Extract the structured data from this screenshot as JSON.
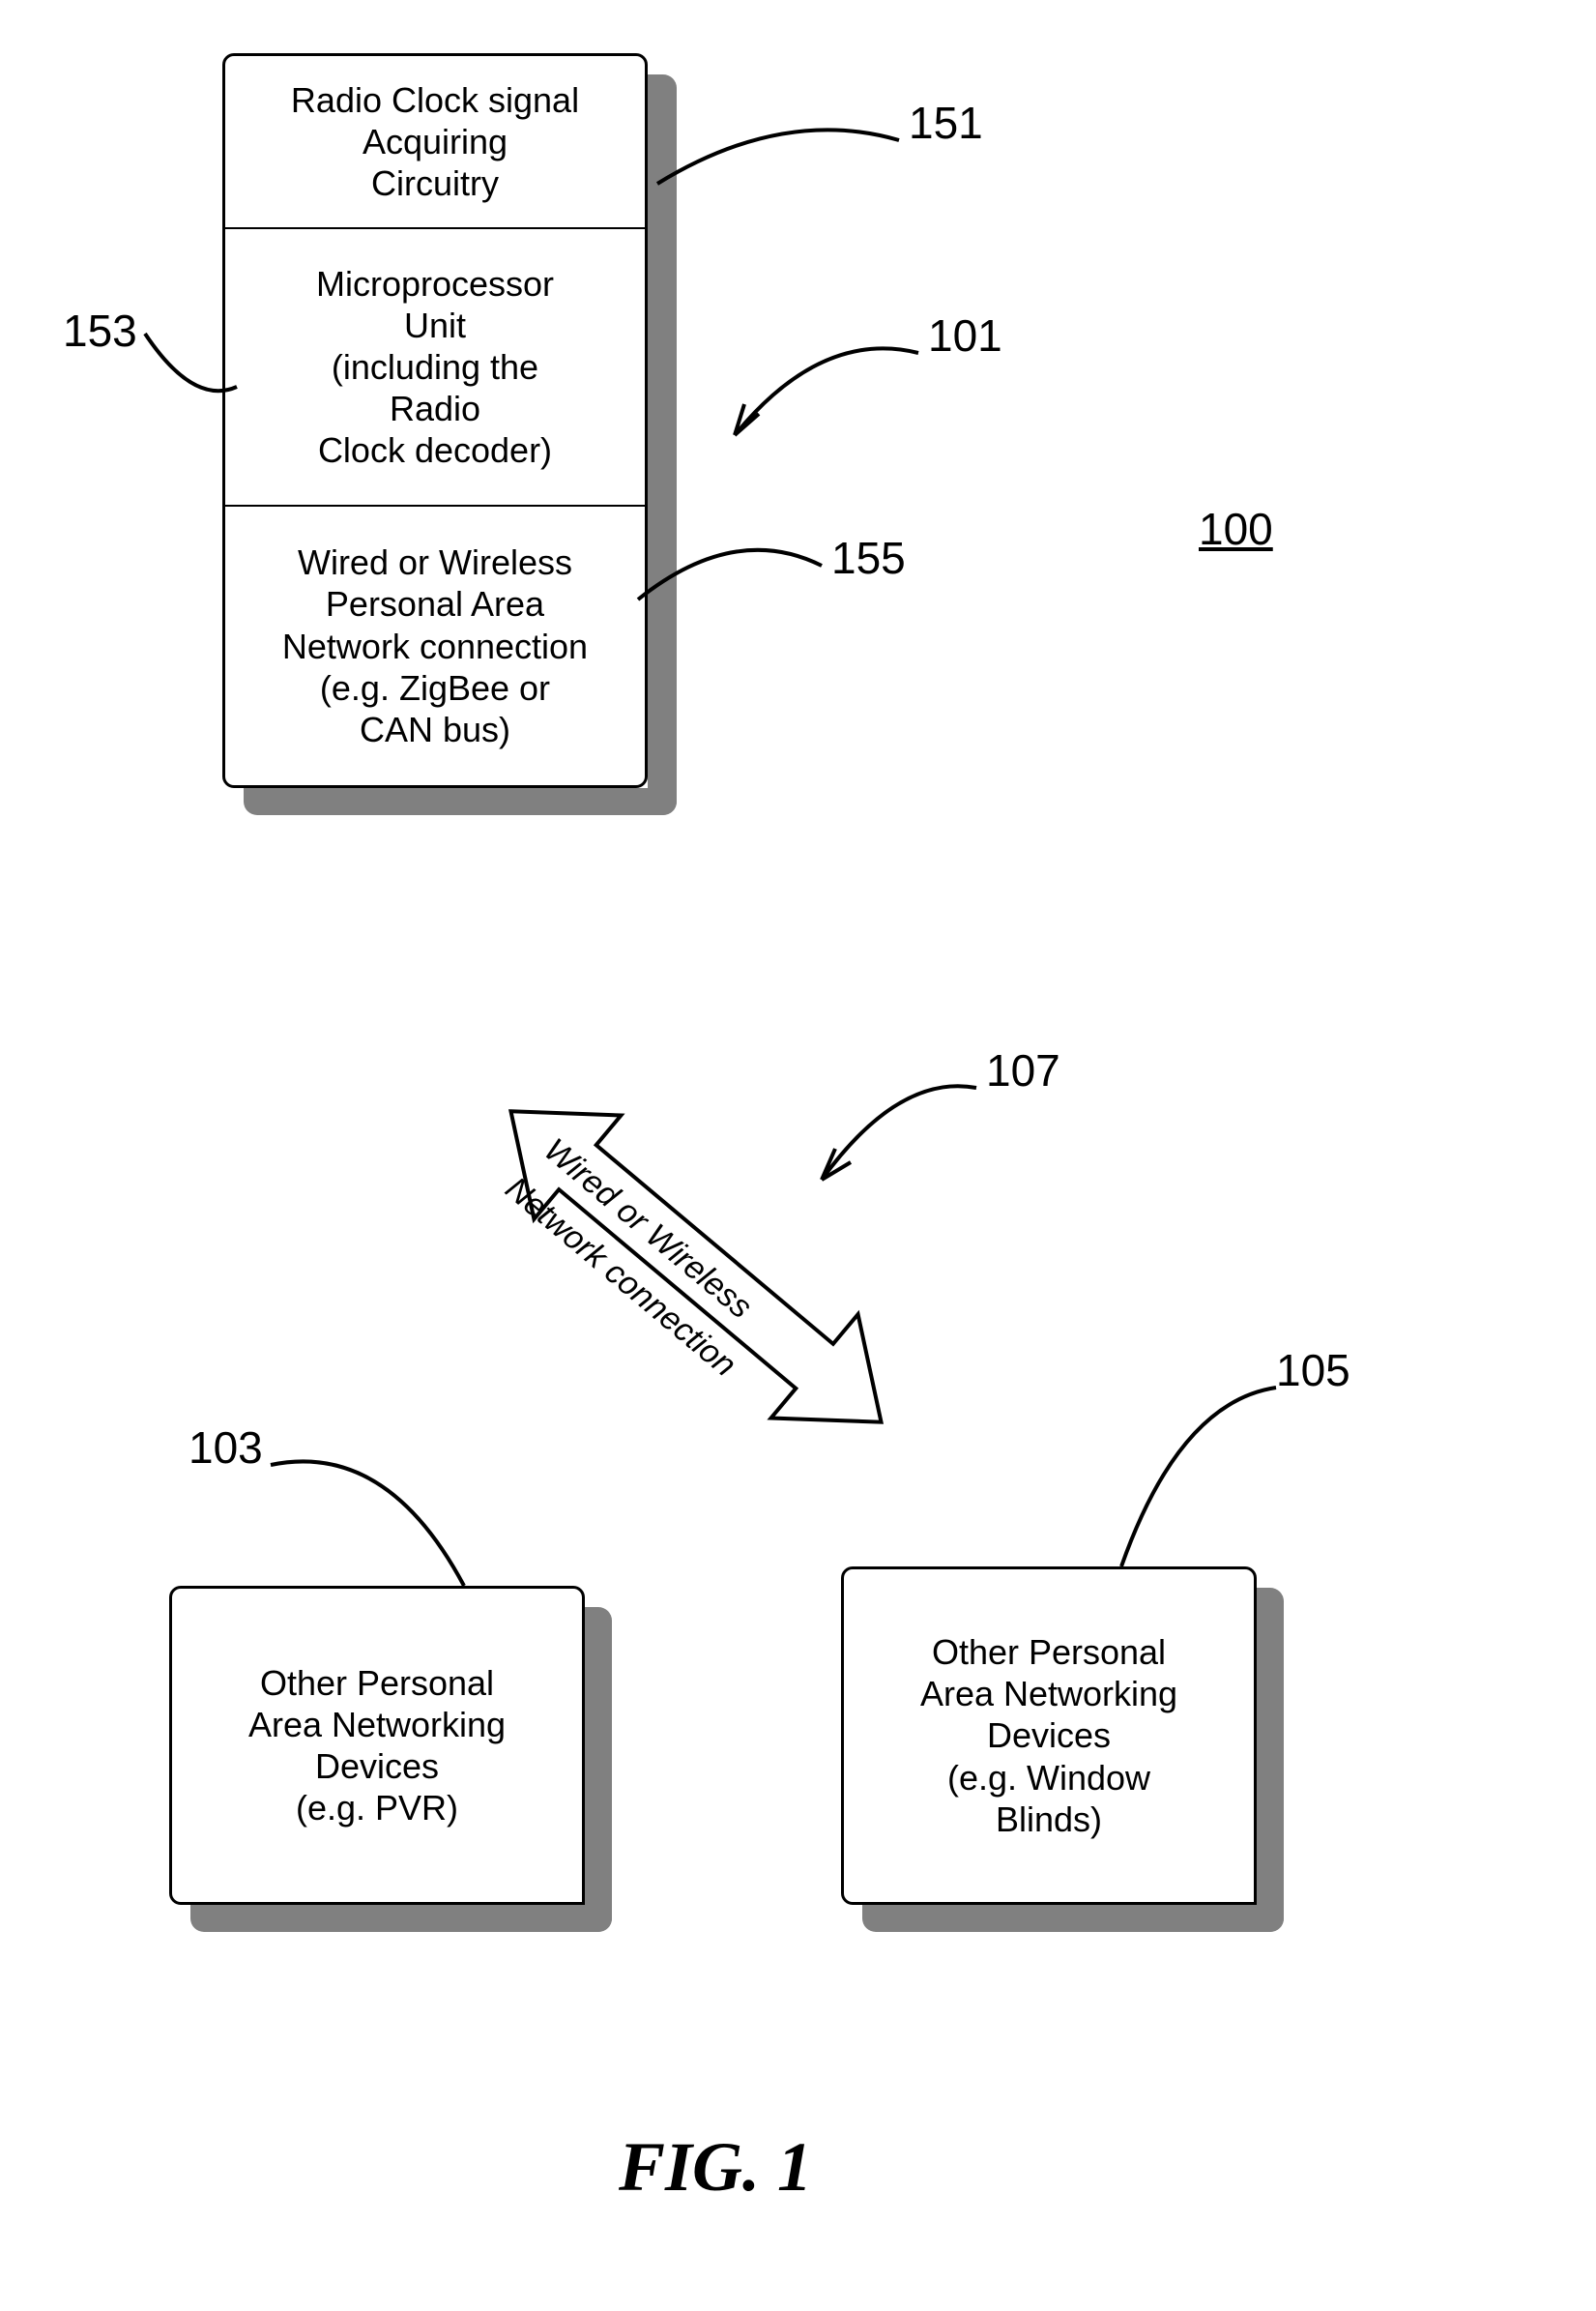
{
  "figure": {
    "number_label": "100",
    "caption": "FIG. 1"
  },
  "stack_box": {
    "ref_main": "101",
    "rows": [
      {
        "label_lines": [
          "Radio Clock signal",
          "Acquiring",
          "Circuitry"
        ],
        "ref": "151"
      },
      {
        "label_lines": [
          "Microprocessor",
          "Unit",
          "(including the",
          "Radio",
          "Clock decoder)"
        ],
        "ref": "153"
      },
      {
        "label_lines": [
          "Wired or Wireless",
          "Personal Area",
          "Network connection",
          "(e.g. ZigBee or",
          "CAN bus)"
        ],
        "ref": "155"
      }
    ]
  },
  "connection_arrow": {
    "ref": "107",
    "text_lines": [
      "Wired or Wireless",
      "Network connection"
    ]
  },
  "device_left": {
    "ref": "103",
    "text_lines": [
      "Other Personal",
      "Area Networking",
      "Devices",
      "(e.g. PVR)"
    ]
  },
  "device_right": {
    "ref": "105",
    "text_lines": [
      "Other Personal",
      "Area Networking",
      "Devices",
      "(e.g. Window",
      "Blinds)"
    ]
  },
  "style": {
    "line_color": "#000000",
    "shadow_color": "#808080",
    "bg_color": "#ffffff",
    "line_width": 3,
    "font_size_box": 36,
    "font_size_label": 46,
    "font_size_caption": 72
  }
}
